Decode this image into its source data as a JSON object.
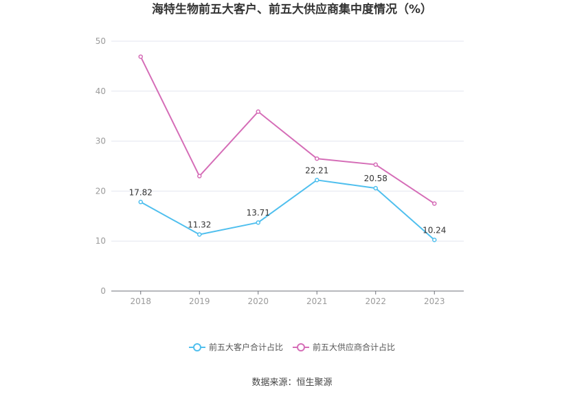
{
  "source": "数据来源：恒生聚源",
  "chart_data": {
    "type": "line",
    "title": "海特生物前五大客户、前五大供应商集中度情况（%）",
    "categories": [
      "2018",
      "2019",
      "2020",
      "2021",
      "2022",
      "2023"
    ],
    "ylim": [
      0,
      50
    ],
    "yticks": [
      0,
      10,
      20,
      30,
      40,
      50
    ],
    "grid": true,
    "legend_position": "bottom",
    "series": [
      {
        "name": "前五大客户合计占比",
        "values": [
          17.82,
          11.32,
          13.71,
          22.21,
          20.58,
          10.24
        ],
        "color": "#4fbfee",
        "data_labels": true
      },
      {
        "name": "前五大供应商合计占比",
        "values": [
          46.9,
          23.0,
          35.9,
          26.5,
          25.3,
          17.5
        ],
        "color": "#d56db7",
        "data_labels": false
      }
    ]
  }
}
